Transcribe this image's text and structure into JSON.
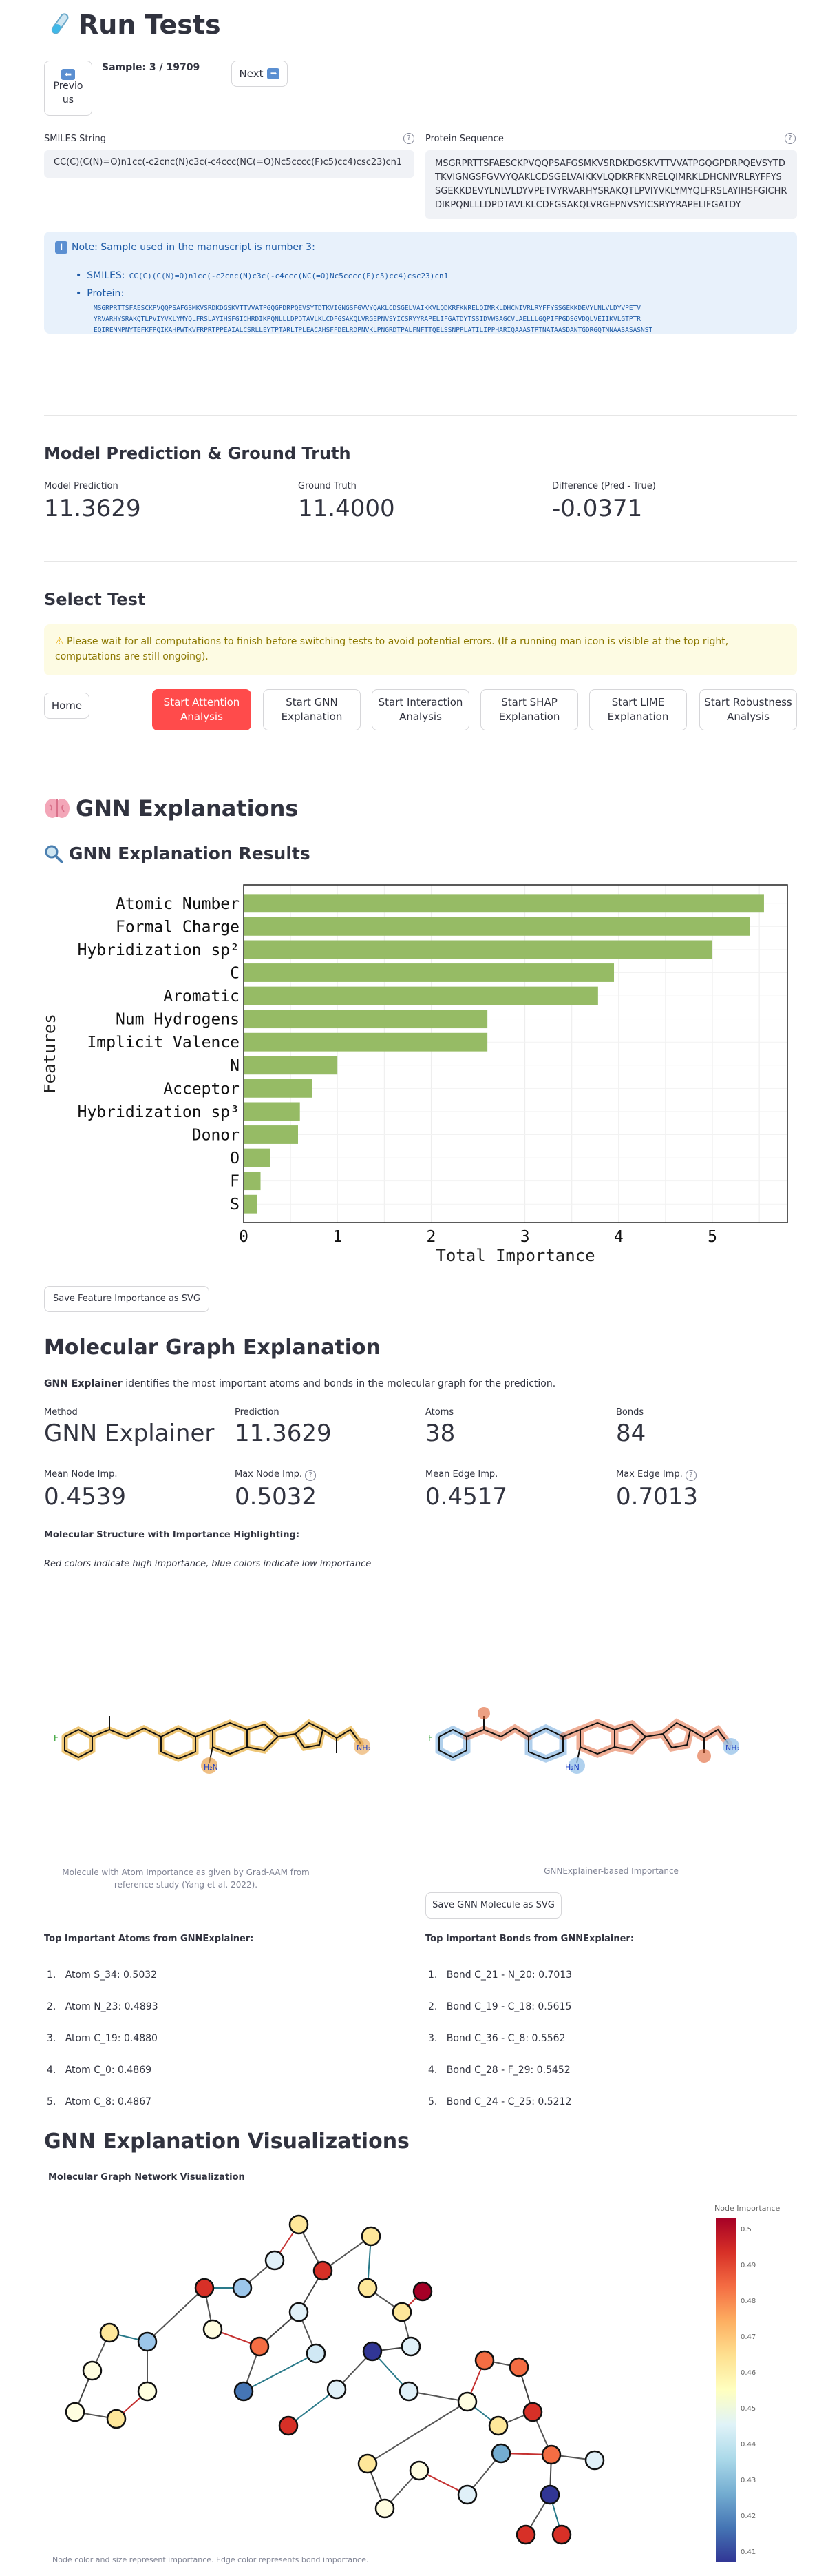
{
  "header": {
    "icon": "test-tube-icon",
    "title": "Run Tests"
  },
  "nav": {
    "prev_label": "Previous",
    "prev_icon": "left-arrow-icon",
    "sample_label": "Sample: 3 / 19709",
    "next_label": "Next",
    "next_icon": "right-arrow-icon"
  },
  "inputs": {
    "smiles_label": "SMILES String",
    "smiles_value": "CC(C)(C(N)=O)n1cc(-c2cnc(N)c3c(-c4ccc(NC(=O)Nc5cccc(F)c5)cc4)csc23)cn1",
    "protein_label": "Protein Sequence",
    "protein_value": "MSGRPRTTSFAESCKPVQQPSAFGSMKVSRDKDGSKVTTVVATPGQGPDRPQEVSYTDTKVIGNGSFGVVYQAKLCDSGELVAIKKVLQDKRFKNRELQIMRKLDHCNIVRLRYFFYSSGEKKDEVYLNLVLDYVPETVYRVARHYSRAKQTLPVIYVKLYMYQLFRSLAYIHSFGICHRDIKPQNLLLDPDTAVLKLCDFGSAKQLVRGEPNVSYICSRYYRAPELIFGATDY"
  },
  "note": {
    "icon": "info-icon",
    "title": "Note: Sample used in the manuscript is number 3:",
    "smiles_label": "SMILES:",
    "smiles_value": "CC(C)(C(N)=O)n1cc(-c2cnc(N)c3c(-c4ccc(NC(=O)Nc5cccc(F)c5)cc4)csc23)cn1",
    "protein_label": "Protein:",
    "protein_lines": [
      "MSGRPRTTSFAESCKPVQQPSAFGSMKVSRDKDGSKVTTVVATPGQGPDRPQEVSYTDTKVIGNGSFGVVYQAKLCDSGELVAIKKVLQDKRFKNRELQIMRKLDHCNIVRLRYFFYSSGEKKDEVYLNLVLDYVPETV",
      "YRVARHYSRAKQTLPVIYVKLYMYQLFRSLAYIHSFGICHRDIKPQNLLLDPDTAVLKLCDFGSAKQLVRGEPNVSYICSRYYRAPELIFGATDYTSSIDVWSAGCVLAELLLGQPIFPGDSGVDQLVEIIKVLGTPTR",
      "EQIREMNPNYTEFKFPQIKAHPWTKVFRPRTPPEAIALCSRLLEYTPTARLTPLEACAHSFFDELRDPNVKLPNGRDTPALFNFTTQELSSNPPLATILIPPHARIQAAASTPTNATAASDANTGDRGQTNNAASASASNST"
    ]
  },
  "prediction": {
    "title": "Model Prediction & Ground Truth",
    "model_label": "Model Prediction",
    "model_value": "11.3629",
    "truth_label": "Ground Truth",
    "truth_value": "11.4000",
    "diff_label": "Difference (Pred - True)",
    "diff_value": "-0.0371"
  },
  "select_test": {
    "title": "Select Test",
    "warn_icon": "warning-icon",
    "warning": "Please wait for all computations to finish before switching tests to avoid potential errors. (If a running man icon is visible at the top right, computations are still ongoing).",
    "buttons": [
      "Home",
      "Start Attention Analysis",
      "Start GNN Explanation",
      "Start Interaction Analysis",
      "Start SHAP Explanation",
      "Start LIME Explanation",
      "Start Robustness Analysis"
    ]
  },
  "gnn": {
    "title_icon": "brain-icon",
    "title": "GNN Explanations",
    "results_icon": "magnifier-icon",
    "results_title": "GNN Explanation Results",
    "save_fi_label": "Save Feature Importance as SVG"
  },
  "chart_data": {
    "type": "bar",
    "orientation": "horizontal",
    "categories": [
      "Atomic Number",
      "Formal Charge",
      "Hybridization sp²",
      "C",
      "Aromatic",
      "Num Hydrogens",
      "Implicit Valence",
      "N",
      "Acceptor",
      "Hybridization sp³",
      "Donor",
      "O",
      "F",
      "S"
    ],
    "values": [
      5.55,
      5.4,
      5.0,
      3.95,
      3.78,
      2.6,
      2.6,
      1.0,
      0.73,
      0.6,
      0.58,
      0.28,
      0.18,
      0.14
    ],
    "xlabel": "Total Importance",
    "ylabel": "Features",
    "xlim": [
      0,
      5.8
    ],
    "xticks": [
      "0",
      "1",
      "2",
      "3",
      "4",
      "5"
    ],
    "grid": true,
    "color": "#96bb65"
  },
  "mol_graph": {
    "title": "Molecular Graph Explanation",
    "desc_bold": "GNN Explainer",
    "desc_rest": " identifies the most important atoms and bonds in the molecular graph for the prediction.",
    "metrics": [
      {
        "label": "Method",
        "value": "GNN Explainer"
      },
      {
        "label": "Prediction",
        "value": "11.3629"
      },
      {
        "label": "Atoms",
        "value": "38"
      },
      {
        "label": "Bonds",
        "value": "84"
      },
      {
        "label": "Mean Node Imp.",
        "value": "0.4539"
      },
      {
        "label": "Max Node Imp.",
        "value": "0.5032"
      },
      {
        "label": "Mean Edge Imp.",
        "value": "0.4517"
      },
      {
        "label": "Max Edge Imp.",
        "value": "0.7013"
      }
    ],
    "structure_title": "Molecular Structure with Importance Highlighting:",
    "structure_note": "Red colors indicate high importance, blue colors indicate low importance",
    "caption_left": "Molecule with Atom Importance as given by Grad-AAM from reference study (Yang et al. 2022).",
    "caption_right": "GNNExplainer-based Importance",
    "save_mol_label": "Save GNN Molecule as SVG",
    "atoms_title": "Top Important Atoms from GNNExplainer:",
    "atoms": [
      "Atom S_34: 0.5032",
      "Atom N_23: 0.4893",
      "Atom C_19: 0.4880",
      "Atom C_0: 0.4869",
      "Atom C_8: 0.4867"
    ],
    "bonds_title": "Top Important Bonds from GNNExplainer:",
    "bonds": [
      "Bond C_21 - N_20: 0.7013",
      "Bond C_19 - C_18: 0.5615",
      "Bond C_36 - C_8: 0.5562",
      "Bond C_28 - F_29: 0.5452",
      "Bond C_24 - C_25: 0.5212"
    ],
    "mol_labels": {
      "f": "F",
      "hn": "HN",
      "h2n": "H₂N",
      "nh2": "NH₂",
      "o": "O",
      "s": "S",
      "n": "N"
    }
  },
  "viz": {
    "title": "GNN Explanation Visualizations",
    "subtitle": "Molecular Graph Network Visualization",
    "colorbar_label": "Node Importance",
    "colorbar_ticks": [
      "0.5",
      "0.49",
      "0.48",
      "0.47",
      "0.46",
      "0.45",
      "0.44",
      "0.43",
      "0.42",
      "0.41"
    ],
    "footnote": "Node color and size represent importance. Edge color represents bond importance."
  }
}
